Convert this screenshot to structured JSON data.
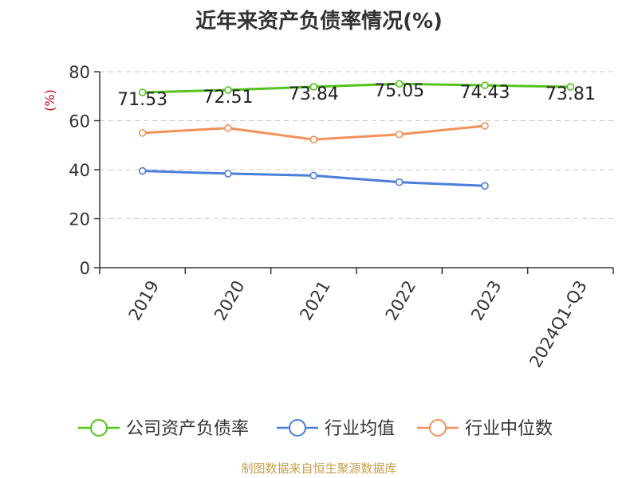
{
  "chart_data": {
    "type": "line",
    "title": "近年来资产负债率情况(%)",
    "ylabel": "(%)",
    "xlabel": "",
    "categories": [
      "2019",
      "2020",
      "2021",
      "2022",
      "2023",
      "2024Q1-Q3"
    ],
    "ylim": [
      0,
      80
    ],
    "yticks": [
      0,
      20,
      40,
      60,
      80
    ],
    "grid": true,
    "legend_position": "bottom",
    "series": [
      {
        "name": "公司资产负债率",
        "color": "#52c41a",
        "values": [
          71.53,
          72.51,
          73.84,
          75.05,
          74.43,
          73.81
        ],
        "labels": [
          "71.53",
          "72.51",
          "73.84",
          "75.05",
          "74.43",
          "73.81"
        ]
      },
      {
        "name": "行业均值",
        "color": "#4a7fd9",
        "values": [
          39.5,
          38.4,
          37.6,
          34.9,
          33.4,
          null
        ]
      },
      {
        "name": "行业中位数",
        "color": "#f4905a",
        "values": [
          55.0,
          57.0,
          52.3,
          54.4,
          57.9,
          null
        ]
      }
    ]
  },
  "footer": {
    "source": "制图数据来自恒生聚源数据库"
  }
}
